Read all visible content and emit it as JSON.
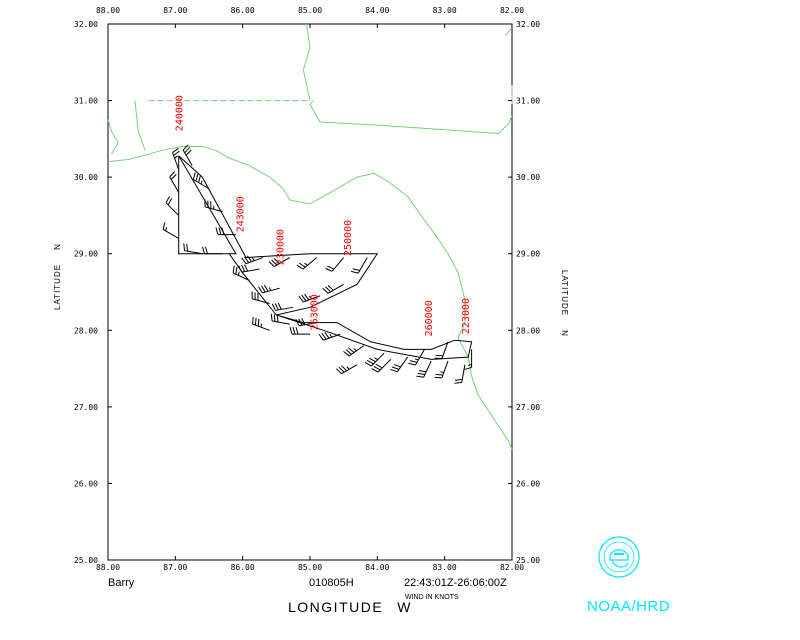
{
  "map": {
    "lon_ticks": [
      "88.00",
      "87.00",
      "86.00",
      "85.00",
      "84.00",
      "83.00",
      "82.00"
    ],
    "lat_ticks": [
      "32.00",
      "31.00",
      "30.00",
      "29.00",
      "28.00",
      "27.00",
      "26.00",
      "25.00"
    ],
    "x_axis_label": "LONGITUDE",
    "x_axis_hemisphere": "W",
    "y_axis_label": "LATITUDE",
    "y_axis_hemisphere": "N",
    "lon_range": [
      -88,
      -82
    ],
    "lat_range": [
      25,
      32
    ],
    "coastline_color": "#7ccf7c",
    "track_color": "#000000",
    "label_color": "#ff0000",
    "icon_color": "#00e5ff"
  },
  "footer": {
    "storm_name": "Barry",
    "flight_id": "010805H",
    "time_range": "22:43:01Z-26:06:00Z",
    "wind_units": "WIND IN KNOTS",
    "agency": "NOAA/HRD"
  },
  "track_points": [
    {
      "lon": -86.95,
      "lat": 30.28
    },
    {
      "lon": -86.95,
      "lat": 29.0
    },
    {
      "lon": -86.1,
      "lat": 29.0
    },
    {
      "lon": -86.95,
      "lat": 30.28
    },
    {
      "lon": -86.6,
      "lat": 30.0
    },
    {
      "lon": -85.95,
      "lat": 28.95
    },
    {
      "lon": -85.0,
      "lat": 29.0
    },
    {
      "lon": -84.0,
      "lat": 29.0
    },
    {
      "lon": -84.3,
      "lat": 28.6
    },
    {
      "lon": -85.0,
      "lat": 28.3
    },
    {
      "lon": -85.5,
      "lat": 28.2
    },
    {
      "lon": -85.1,
      "lat": 28.1
    },
    {
      "lon": -84.6,
      "lat": 28.1
    },
    {
      "lon": -84.1,
      "lat": 27.85
    },
    {
      "lon": -83.6,
      "lat": 27.75
    },
    {
      "lon": -83.2,
      "lat": 27.75
    },
    {
      "lon": -82.85,
      "lat": 27.87
    },
    {
      "lon": -82.6,
      "lat": 27.85
    },
    {
      "lon": -82.65,
      "lat": 27.65
    },
    {
      "lon": -83.2,
      "lat": 27.62
    },
    {
      "lon": -84.0,
      "lat": 27.75
    },
    {
      "lon": -84.8,
      "lat": 28.0
    },
    {
      "lon": -85.5,
      "lat": 28.2
    },
    {
      "lon": -86.0,
      "lat": 28.75
    },
    {
      "lon": -86.2,
      "lat": 29.0
    }
  ],
  "time_labels": [
    {
      "text": "240000",
      "lon": -86.95,
      "lat": 30.6
    },
    {
      "text": "243000",
      "lon": -86.05,
      "lat": 29.28
    },
    {
      "text": "230000",
      "lon": -85.45,
      "lat": 28.85
    },
    {
      "text": "250000",
      "lon": -84.45,
      "lat": 28.97
    },
    {
      "text": "253000",
      "lon": -84.95,
      "lat": 28.0
    },
    {
      "text": "260000",
      "lon": -83.25,
      "lat": 27.92
    },
    {
      "text": "223000",
      "lon": -82.7,
      "lat": 27.95
    }
  ],
  "wind_barbs": [
    {
      "lon": -86.95,
      "lat": 30.1,
      "dir": 340,
      "spd": 25
    },
    {
      "lon": -86.95,
      "lat": 29.8,
      "dir": 330,
      "spd": 20
    },
    {
      "lon": -86.95,
      "lat": 29.5,
      "dir": 315,
      "spd": 20
    },
    {
      "lon": -86.95,
      "lat": 29.2,
      "dir": 300,
      "spd": 15
    },
    {
      "lon": -86.6,
      "lat": 29.0,
      "dir": 280,
      "spd": 20
    },
    {
      "lon": -86.3,
      "lat": 29.0,
      "dir": 270,
      "spd": 20
    },
    {
      "lon": -86.75,
      "lat": 30.15,
      "dir": 330,
      "spd": 30
    },
    {
      "lon": -86.5,
      "lat": 29.85,
      "dir": 300,
      "spd": 35
    },
    {
      "lon": -86.3,
      "lat": 29.55,
      "dir": 285,
      "spd": 35
    },
    {
      "lon": -86.1,
      "lat": 29.25,
      "dir": 270,
      "spd": 30
    },
    {
      "lon": -85.7,
      "lat": 28.95,
      "dir": 250,
      "spd": 35
    },
    {
      "lon": -85.3,
      "lat": 28.95,
      "dir": 240,
      "spd": 30
    },
    {
      "lon": -84.9,
      "lat": 28.95,
      "dir": 230,
      "spd": 25
    },
    {
      "lon": -84.5,
      "lat": 28.95,
      "dir": 220,
      "spd": 20
    },
    {
      "lon": -84.15,
      "lat": 28.95,
      "dir": 210,
      "spd": 20
    },
    {
      "lon": -84.5,
      "lat": 28.6,
      "dir": 240,
      "spd": 30
    },
    {
      "lon": -84.85,
      "lat": 28.45,
      "dir": 250,
      "spd": 35
    },
    {
      "lon": -85.25,
      "lat": 28.3,
      "dir": 260,
      "spd": 30
    },
    {
      "lon": -85.6,
      "lat": 28.0,
      "dir": 290,
      "spd": 35
    },
    {
      "lon": -85.3,
      "lat": 28.08,
      "dir": 280,
      "spd": 30
    },
    {
      "lon": -84.9,
      "lat": 28.1,
      "dir": 260,
      "spd": 30
    },
    {
      "lon": -84.55,
      "lat": 27.95,
      "dir": 250,
      "spd": 35
    },
    {
      "lon": -84.2,
      "lat": 27.8,
      "dir": 235,
      "spd": 35
    },
    {
      "lon": -83.9,
      "lat": 27.7,
      "dir": 225,
      "spd": 35
    },
    {
      "lon": -83.55,
      "lat": 27.65,
      "dir": 215,
      "spd": 30
    },
    {
      "lon": -83.2,
      "lat": 27.6,
      "dir": 205,
      "spd": 30
    },
    {
      "lon": -82.95,
      "lat": 27.6,
      "dir": 200,
      "spd": 25
    },
    {
      "lon": -82.7,
      "lat": 27.55,
      "dir": 190,
      "spd": 20
    },
    {
      "lon": -82.6,
      "lat": 27.75,
      "dir": 180,
      "spd": 15
    },
    {
      "lon": -82.95,
      "lat": 27.85,
      "dir": 200,
      "spd": 20
    },
    {
      "lon": -83.3,
      "lat": 27.75,
      "dir": 210,
      "spd": 25
    },
    {
      "lon": -83.8,
      "lat": 27.62,
      "dir": 225,
      "spd": 30
    },
    {
      "lon": -84.3,
      "lat": 27.55,
      "dir": 240,
      "spd": 35
    },
    {
      "lon": -85.0,
      "lat": 27.95,
      "dir": 270,
      "spd": 30
    },
    {
      "lon": -85.6,
      "lat": 28.35,
      "dir": 285,
      "spd": 30
    },
    {
      "lon": -85.9,
      "lat": 28.65,
      "dir": 295,
      "spd": 25
    },
    {
      "lon": -85.75,
      "lat": 28.8,
      "dir": 260,
      "spd": 30
    },
    {
      "lon": -85.45,
      "lat": 28.55,
      "dir": 255,
      "spd": 35
    }
  ],
  "coastline": [
    {
      "lon": -88.0,
      "lat": 30.2
    },
    {
      "lon": -87.7,
      "lat": 30.23
    },
    {
      "lon": -87.4,
      "lat": 30.3
    },
    {
      "lon": -87.2,
      "lat": 30.35
    },
    {
      "lon": -86.9,
      "lat": 30.4
    },
    {
      "lon": -86.6,
      "lat": 30.4
    },
    {
      "lon": -86.4,
      "lat": 30.35
    },
    {
      "lon": -86.2,
      "lat": 30.25
    },
    {
      "lon": -85.9,
      "lat": 30.15
    },
    {
      "lon": -85.6,
      "lat": 30.0
    },
    {
      "lon": -85.4,
      "lat": 29.85
    },
    {
      "lon": -85.3,
      "lat": 29.7
    },
    {
      "lon": -85.0,
      "lat": 29.65
    },
    {
      "lon": -84.8,
      "lat": 29.75
    },
    {
      "lon": -84.5,
      "lat": 29.9
    },
    {
      "lon": -84.3,
      "lat": 30.0
    },
    {
      "lon": -84.05,
      "lat": 30.05
    },
    {
      "lon": -83.85,
      "lat": 29.95
    },
    {
      "lon": -83.55,
      "lat": 29.75
    },
    {
      "lon": -83.35,
      "lat": 29.5
    },
    {
      "lon": -83.1,
      "lat": 29.2
    },
    {
      "lon": -82.95,
      "lat": 29.0
    },
    {
      "lon": -82.8,
      "lat": 28.75
    },
    {
      "lon": -82.7,
      "lat": 28.4
    },
    {
      "lon": -82.7,
      "lat": 28.1
    },
    {
      "lon": -82.8,
      "lat": 27.9
    },
    {
      "lon": -82.65,
      "lat": 27.65
    },
    {
      "lon": -82.6,
      "lat": 27.4
    },
    {
      "lon": -82.5,
      "lat": 27.15
    },
    {
      "lon": -82.35,
      "lat": 26.95
    },
    {
      "lon": -82.2,
      "lat": 26.75
    },
    {
      "lon": -82.05,
      "lat": 26.55
    },
    {
      "lon": -82.0,
      "lat": 26.45
    }
  ],
  "inland_coast": [
    {
      "lon": -82.0,
      "lat": 31.2
    },
    {
      "lon": -82.0,
      "lat": 30.95
    }
  ],
  "state_border_al_fl_solid": [
    {
      "lon": -84.95,
      "lat": 31.0
    },
    {
      "lon": -85.0,
      "lat": 30.95
    },
    {
      "lon": -84.85,
      "lat": 30.72
    },
    {
      "lon": -84.0,
      "lat": 30.68
    },
    {
      "lon": -83.0,
      "lat": 30.62
    },
    {
      "lon": -82.2,
      "lat": 30.57
    },
    {
      "lon": -82.05,
      "lat": 30.7
    },
    {
      "lon": -82.0,
      "lat": 30.8
    }
  ],
  "state_border_al_fl_dashed": [
    {
      "lon": -87.4,
      "lat": 31.0
    },
    {
      "lon": -85.0,
      "lat": 31.0
    }
  ],
  "state_border_al_ga": [
    {
      "lon": -85.0,
      "lat": 31.0
    },
    {
      "lon": -85.1,
      "lat": 31.4
    },
    {
      "lon": -85.0,
      "lat": 31.7
    },
    {
      "lon": -85.05,
      "lat": 32.0
    }
  ],
  "perdido_line": [
    {
      "lon": -87.6,
      "lat": 31.0
    },
    {
      "lon": -87.55,
      "lat": 30.6
    },
    {
      "lon": -87.45,
      "lat": 30.35
    }
  ],
  "mobile_bay": [
    {
      "lon": -88.0,
      "lat": 30.75
    },
    {
      "lon": -87.95,
      "lat": 30.6
    },
    {
      "lon": -87.85,
      "lat": 30.45
    },
    {
      "lon": -87.95,
      "lat": 30.3
    }
  ],
  "ga_coast_top": [
    {
      "lon": -82.1,
      "lat": 31.85
    },
    {
      "lon": -82.0,
      "lat": 31.95
    }
  ]
}
